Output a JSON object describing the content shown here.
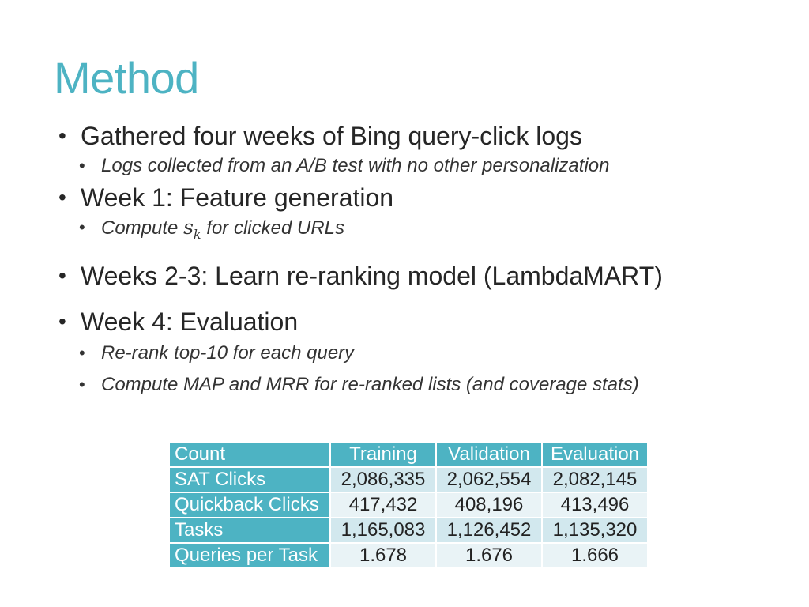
{
  "slide": {
    "title": "Method",
    "bullets": [
      {
        "text": "Gathered four weeks of Bing query-click logs",
        "sub": [
          "Logs collected from an A/B test with no other personalization"
        ]
      },
      {
        "text": "Week 1: Feature generation",
        "sub_math": {
          "before": "Compute ",
          "symbol": "s",
          "subscript": "k",
          "after": " for clicked URLs"
        }
      },
      {
        "text": "Weeks 2-3: Learn re-ranking model (LambdaMART)"
      },
      {
        "text": "Week 4: Evaluation",
        "sub": [
          "Re-rank top-10 for each query",
          "Compute MAP and MRR for re-ranked lists (and coverage stats)"
        ]
      }
    ]
  },
  "table": {
    "headers": [
      "Count",
      "Training",
      "Validation",
      "Evaluation"
    ],
    "rows": [
      {
        "label": "SAT Clicks",
        "values": [
          "2,086,335",
          "2,062,554",
          "2,082,145"
        ]
      },
      {
        "label": "Quickback Clicks",
        "values": [
          "417,432",
          "408,196",
          "413,496"
        ]
      },
      {
        "label": "Tasks",
        "values": [
          "1,165,083",
          "1,126,452",
          "1,135,320"
        ]
      },
      {
        "label": "Queries per Task",
        "values": [
          "1.678",
          "1.676",
          "1.666"
        ]
      }
    ]
  },
  "colors": {
    "accent": "#4db3c3",
    "row_dark": "#d2e8ee",
    "row_light": "#e9f3f6"
  }
}
